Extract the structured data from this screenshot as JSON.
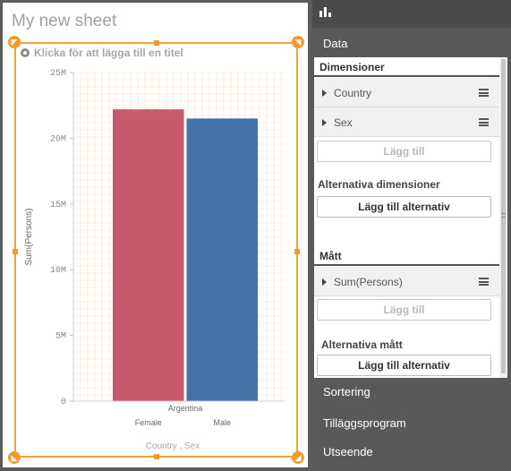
{
  "sheet": {
    "title": "My new sheet"
  },
  "chart": {
    "placeholder_title": "Klicka för att lägga till en titel",
    "accent_color": "#f39a2a"
  },
  "chart_data": {
    "type": "bar",
    "title": "",
    "ylabel": "Sum(Persons)",
    "xlabel": "Country , Sex",
    "categories": [
      "Female",
      "Male"
    ],
    "group_label": "Argentina",
    "values": [
      22200000,
      21500000
    ],
    "colors": [
      "#c85b6b",
      "#4272a6"
    ],
    "ylim": [
      0,
      25000000
    ],
    "yticks": [
      0,
      5000000,
      10000000,
      15000000,
      20000000,
      25000000
    ],
    "ytick_labels": [
      "0",
      "5M",
      "10M",
      "15M",
      "20M",
      "25M"
    ],
    "grid": true
  },
  "panel": {
    "tabs": {
      "data": "Data",
      "sorting": "Sortering",
      "addons": "Tilläggsprogram",
      "appearance": "Utseende"
    },
    "dimensions": {
      "header": "Dimensioner",
      "items": [
        {
          "label": "Country"
        },
        {
          "label": "Sex"
        }
      ],
      "add_label": "Lägg till",
      "alt_header": "Alternativa dimensioner",
      "alt_add_label": "Lägg till alternativ"
    },
    "measures": {
      "header": "Mått",
      "items": [
        {
          "label": "Sum(Persons)"
        }
      ],
      "add_label": "Lägg till",
      "alt_header": "Alternativa mått",
      "alt_add_label": "Lägg till alternativ"
    }
  }
}
